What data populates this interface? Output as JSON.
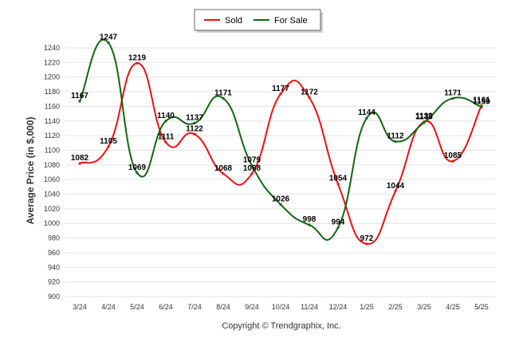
{
  "chart_data": {
    "type": "line",
    "ylabel": "Average Price (in $,000)",
    "categories": [
      "3/24",
      "4/24",
      "5/24",
      "6/24",
      "7/24",
      "8/24",
      "9/24",
      "10/24",
      "11/24",
      "12/24",
      "1/25",
      "2/25",
      "3/25",
      "4/25",
      "5/25"
    ],
    "ylim": [
      900,
      1240
    ],
    "yticks": [
      900,
      920,
      940,
      960,
      980,
      1000,
      1020,
      1040,
      1060,
      1080,
      1100,
      1120,
      1140,
      1160,
      1180,
      1200,
      1220,
      1240
    ],
    "grid": true,
    "legend_position": "top-center",
    "series": [
      {
        "name": "Sold",
        "color": "#ee1111",
        "values": [
          1082,
          1105,
          1219,
          1111,
          1122,
          1068,
          1068,
          1177,
          1172,
          1054,
          972,
          1044,
          1139,
          1085,
          1161
        ]
      },
      {
        "name": "For Sale",
        "color": "#116611",
        "values": [
          1167,
          1247,
          1069,
          1140,
          1137,
          1171,
          1079,
          1026,
          998,
          994,
          1144,
          1112,
          1138,
          1171,
          1159
        ]
      }
    ],
    "footer": "Copyright © Trendgraphix, Inc."
  }
}
